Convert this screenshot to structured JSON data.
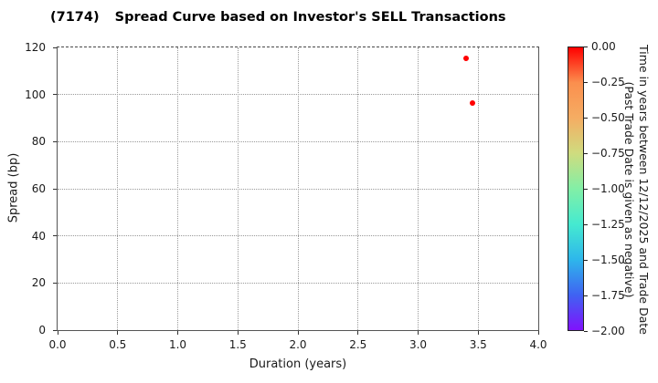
{
  "header": {
    "ticker": "(7174)",
    "title": "Spread Curve based on Investor's SELL Transactions"
  },
  "axes": {
    "xlabel": "Duration (years)",
    "ylabel": "Spread (bp)"
  },
  "chart_data": {
    "type": "scatter",
    "title": "(7174) Spread Curve based on Investor's SELL Transactions",
    "xlabel": "Duration (years)",
    "ylabel": "Spread (bp)",
    "xlim": [
      0.0,
      4.0
    ],
    "ylim": [
      0,
      120
    ],
    "grid": true,
    "x_ticks": [
      0.0,
      0.5,
      1.0,
      1.5,
      2.0,
      2.5,
      3.0,
      3.5,
      4.0
    ],
    "x_tick_labels": [
      "0.0",
      "0.5",
      "1.0",
      "1.5",
      "2.0",
      "2.5",
      "3.0",
      "3.5",
      "4.0"
    ],
    "y_ticks": [
      0,
      20,
      40,
      60,
      80,
      100,
      120
    ],
    "y_tick_labels": [
      "0",
      "20",
      "40",
      "60",
      "80",
      "100",
      "120"
    ],
    "points": [
      {
        "x": 3.4,
        "y": 115.5,
        "time_value": 0.0,
        "color": "#ff0000"
      },
      {
        "x": 3.45,
        "y": 96.5,
        "time_value": 0.0,
        "color": "#ff0000"
      }
    ],
    "colorbar": {
      "min": -2.0,
      "max": 0.0,
      "tick_labels": [
        "0.00",
        "−0.25",
        "−0.50",
        "−0.75",
        "−1.00",
        "−1.25",
        "−1.50",
        "−1.75",
        "−2.00"
      ],
      "label_line1": "Time in years between 12/12/2025 and Trade Date",
      "label_line2": "(Past Trade Date is given as negative)",
      "gradient_top_to_bottom": [
        "#ff0000",
        "#fb8f4e",
        "#f5ad63",
        "#cfdc7f",
        "#82efa6",
        "#45ead0",
        "#2eb7eb",
        "#3f63f2",
        "#8012fc"
      ]
    }
  }
}
